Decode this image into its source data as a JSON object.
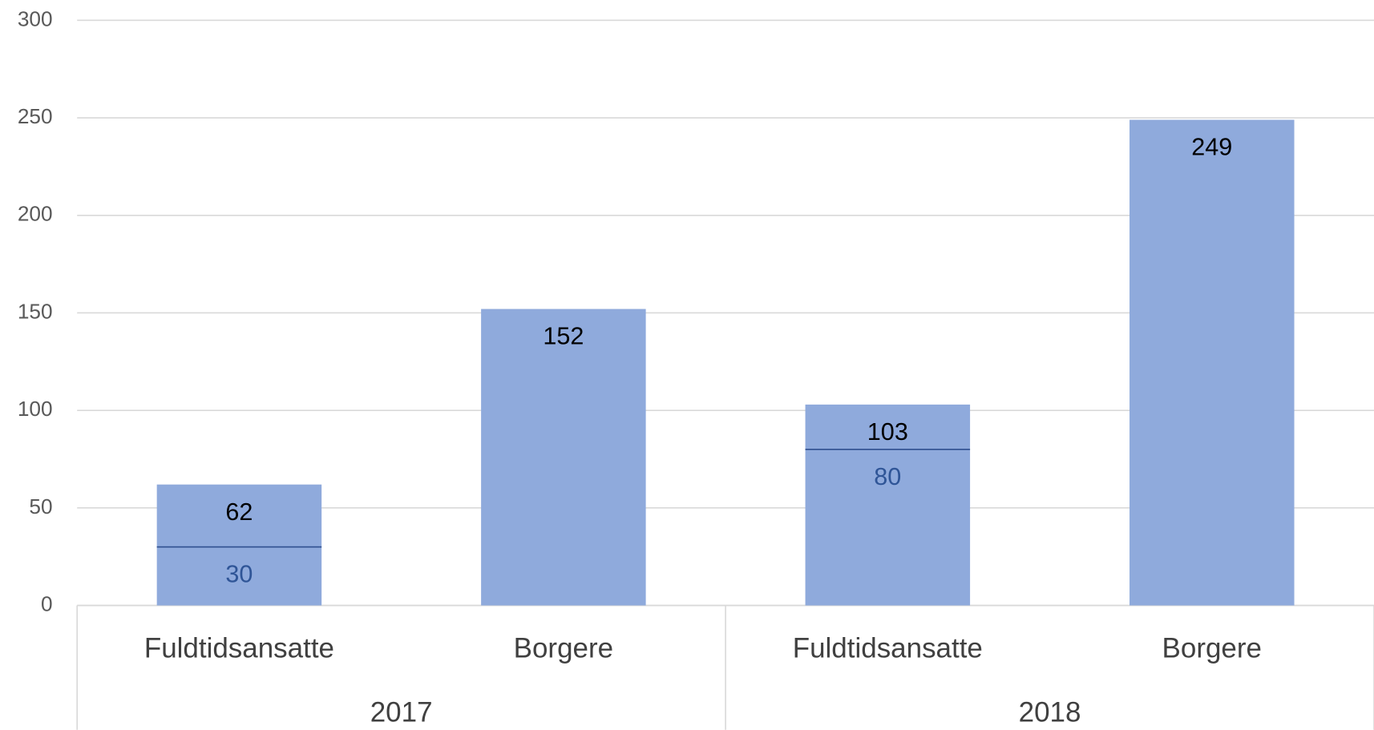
{
  "chart_data": {
    "type": "bar",
    "categories": [
      "Fuldtidsansatte",
      "Borgere",
      "Fuldtidsansatte",
      "Borgere"
    ],
    "groups": [
      "2017",
      "2018"
    ],
    "values": [
      62,
      152,
      103,
      249
    ],
    "inner_values": [
      30,
      null,
      80,
      null
    ],
    "color": "#8faadc",
    "inner_color": "#2f4f8f",
    "ylim": [
      0,
      300
    ],
    "yticks": [
      0,
      50,
      100,
      150,
      200,
      250,
      300
    ],
    "grid": true
  }
}
